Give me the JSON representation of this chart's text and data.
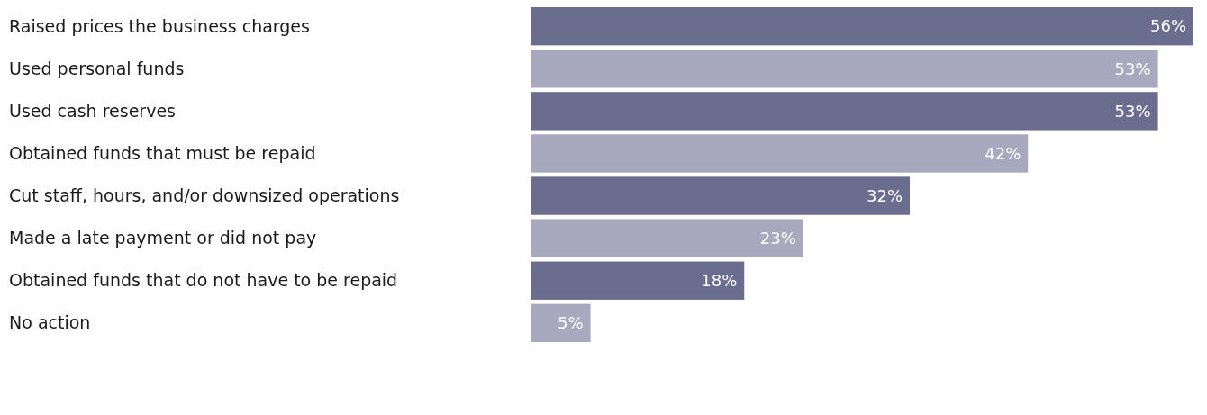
{
  "chart_data": {
    "type": "bar",
    "orientation": "horizontal",
    "categories": [
      "Raised prices the business charges",
      "Used personal funds",
      "Used cash reserves",
      "Obtained funds that must be repaid",
      "Cut staff, hours, and/or downsized operations",
      "Made a late payment or did not pay",
      "Obtained funds that do not have to be repaid",
      "No action"
    ],
    "values": [
      56,
      53,
      53,
      42,
      32,
      23,
      18,
      5
    ],
    "colors": [
      "#6b6d8f",
      "#a8a9be",
      "#6b6d8f",
      "#a8a9be",
      "#6b6d8f",
      "#a8a9be",
      "#6b6d8f",
      "#a8a9be"
    ],
    "value_labels": [
      "56%",
      "53%",
      "53%",
      "42%",
      "32%",
      "23%",
      "18%",
      "5%"
    ]
  }
}
